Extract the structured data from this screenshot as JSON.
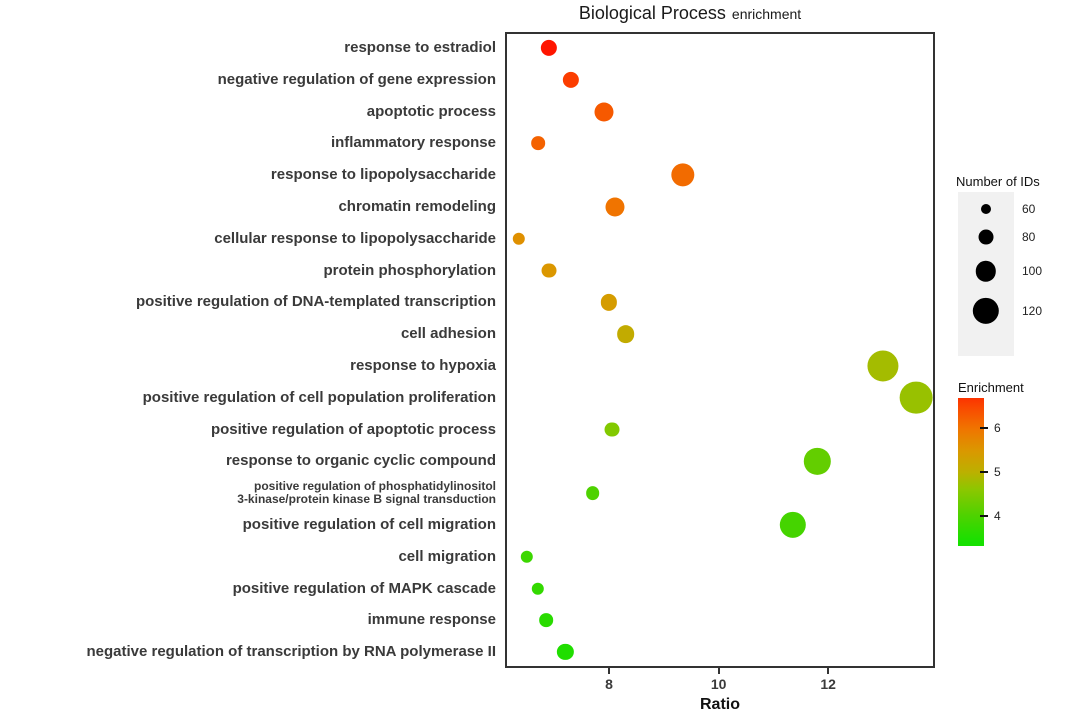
{
  "title": {
    "main": "Biological Process",
    "sub": "enrichment"
  },
  "chart_data": {
    "type": "scatter",
    "title": "Biological Process enrichment",
    "xlabel": "Ratio",
    "ylabel": "",
    "x_ticks": [
      8,
      10,
      12
    ],
    "xlim": [
      6.1,
      13.95
    ],
    "grid": false,
    "size_legend": {
      "title": "Number of IDs",
      "sizes": [
        60,
        80,
        100,
        120
      ]
    },
    "color_legend": {
      "title": "Enrichment",
      "ticks": [
        6,
        5,
        4
      ],
      "domain": [
        3.3,
        6.7
      ]
    },
    "color_stops": [
      [
        3.4,
        "#17E000"
      ],
      [
        4.0,
        "#4ED200"
      ],
      [
        4.6,
        "#8CC700"
      ],
      [
        5.0,
        "#BCB000"
      ],
      [
        5.5,
        "#DB9700"
      ],
      [
        6.0,
        "#F07400"
      ],
      [
        6.5,
        "#FA4700"
      ],
      [
        7.0,
        "#FF1500"
      ]
    ],
    "points": [
      {
        "label": "response to estradiol",
        "ratio": 6.9,
        "count": 85,
        "enrichment": 7.0
      },
      {
        "label": "negative regulation of gene expression",
        "ratio": 7.3,
        "count": 85,
        "enrichment": 6.6
      },
      {
        "label": "apoptotic process",
        "ratio": 7.9,
        "count": 95,
        "enrichment": 6.3
      },
      {
        "label": "inflammatory response",
        "ratio": 6.7,
        "count": 75,
        "enrichment": 6.2
      },
      {
        "label": "response to lipopolysaccharide",
        "ratio": 9.35,
        "count": 110,
        "enrichment": 6.1
      },
      {
        "label": "chromatin remodeling",
        "ratio": 8.1,
        "count": 95,
        "enrichment": 6.0
      },
      {
        "label": "cellular response to lipopolysaccharide",
        "ratio": 6.35,
        "count": 70,
        "enrichment": 5.6
      },
      {
        "label": "protein phosphorylation",
        "ratio": 6.9,
        "count": 80,
        "enrichment": 5.5
      },
      {
        "label": "positive regulation of DNA-templated transcription",
        "ratio": 8.0,
        "count": 85,
        "enrichment": 5.4
      },
      {
        "label": "cell adhesion",
        "ratio": 8.3,
        "count": 90,
        "enrichment": 5.1
      },
      {
        "label": "response to hypoxia",
        "ratio": 13.0,
        "count": 135,
        "enrichment": 4.8
      },
      {
        "label": "positive regulation of cell population proliferation",
        "ratio": 13.6,
        "count": 140,
        "enrichment": 4.7
      },
      {
        "label": "positive regulation of apoptotic process",
        "ratio": 8.05,
        "count": 80,
        "enrichment": 4.5
      },
      {
        "label": "response to organic cyclic compound",
        "ratio": 11.8,
        "count": 120,
        "enrichment": 4.2
      },
      {
        "label": "positive regulation of phosphatidylinositol\n3-kinase/protein kinase B signal transduction",
        "small": true,
        "ratio": 7.7,
        "count": 75,
        "enrichment": 4.0
      },
      {
        "label": "positive regulation of cell migration",
        "ratio": 11.35,
        "count": 120,
        "enrichment": 3.9
      },
      {
        "label": "cell migration",
        "ratio": 6.5,
        "count": 70,
        "enrichment": 3.8
      },
      {
        "label": "positive regulation of MAPK cascade",
        "ratio": 6.7,
        "count": 70,
        "enrichment": 3.7
      },
      {
        "label": "immune response",
        "ratio": 6.85,
        "count": 75,
        "enrichment": 3.6
      },
      {
        "label": "negative regulation of transcription by RNA polymerase II",
        "ratio": 7.2,
        "count": 85,
        "enrichment": 3.5
      }
    ]
  }
}
